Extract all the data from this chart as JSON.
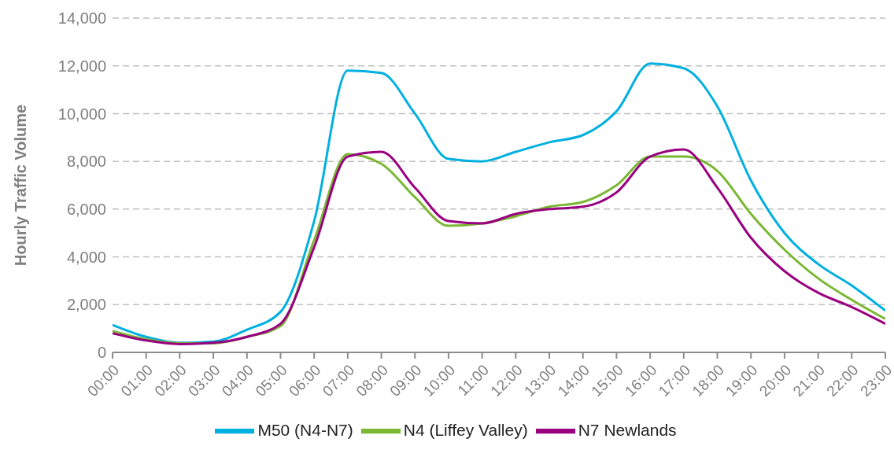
{
  "chart_data": {
    "type": "line",
    "ylabel": "Hourly Traffic Volume",
    "categories": [
      "00:00",
      "01:00",
      "02:00",
      "03:00",
      "04:00",
      "05:00",
      "06:00",
      "07:00",
      "08:00",
      "09:00",
      "10:00",
      "11:00",
      "12:00",
      "13:00",
      "14:00",
      "15:00",
      "16:00",
      "17:00",
      "18:00",
      "19:00",
      "20:00",
      "21:00",
      "22:00",
      "23:00"
    ],
    "series": [
      {
        "name": "M50 (N4-N7)",
        "color": "#00b0e0",
        "values": [
          1150,
          650,
          400,
          450,
          950,
          1700,
          5500,
          11800,
          11700,
          10000,
          8100,
          8000,
          8400,
          8800,
          9100,
          10100,
          12100,
          11900,
          10300,
          7200,
          5000,
          3700,
          2800,
          1750
        ]
      },
      {
        "name": "N4 (Liffey Valley)",
        "color": "#7ab733",
        "values": [
          900,
          550,
          380,
          380,
          650,
          1100,
          4700,
          8300,
          7900,
          6500,
          5300,
          5400,
          5700,
          6100,
          6300,
          7000,
          8200,
          8200,
          7600,
          5800,
          4300,
          3100,
          2200,
          1400
        ]
      },
      {
        "name": "N7 Newlands",
        "color": "#990080",
        "values": [
          800,
          500,
          350,
          400,
          650,
          1200,
          4400,
          8200,
          8400,
          6900,
          5500,
          5400,
          5800,
          6000,
          6100,
          6700,
          8200,
          8500,
          6900,
          4800,
          3400,
          2500,
          1900,
          1200
        ]
      }
    ],
    "ylim": [
      0,
      14000
    ],
    "yticks": [
      0,
      {
        "value": 2000,
        "label": "2,000"
      },
      {
        "value": 4000,
        "label": "4,000"
      },
      {
        "value": 6000,
        "label": "6,000"
      },
      {
        "value": 8000,
        "label": "8,000"
      },
      {
        "value": 10000,
        "label": "10,000"
      },
      {
        "value": 12000,
        "label": "12,000"
      },
      {
        "value": 14000,
        "label": "14,000"
      }
    ],
    "grid": "y",
    "legend": "bottom",
    "marker": "none",
    "line_style": "solid"
  }
}
